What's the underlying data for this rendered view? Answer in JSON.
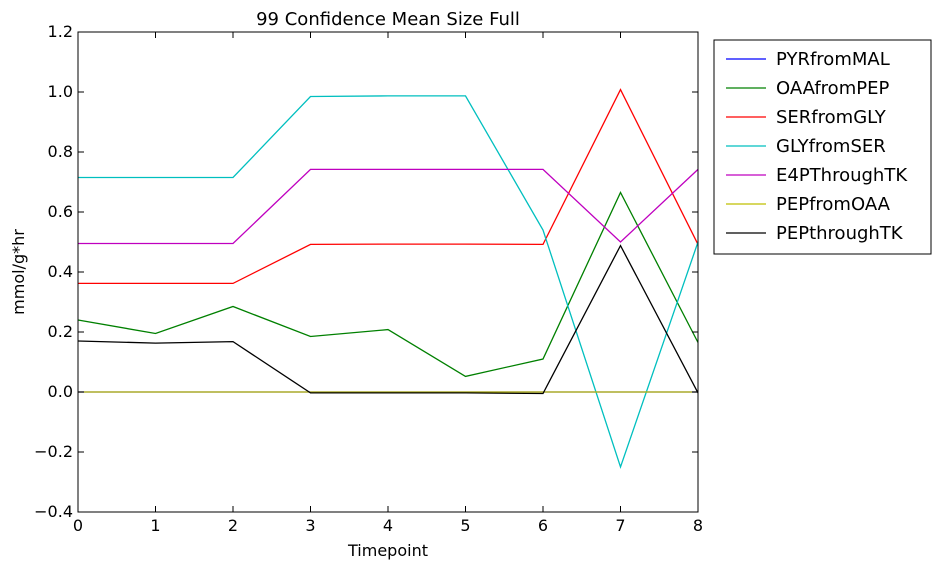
{
  "chart_data": {
    "type": "line",
    "title": "99 Confidence Mean Size Full",
    "xlabel": "Timepoint",
    "ylabel": "mmol/g*hr",
    "xlim": [
      0,
      8
    ],
    "ylim": [
      -0.4,
      1.2
    ],
    "x_ticks": [
      "0",
      "1",
      "2",
      "3",
      "4",
      "5",
      "6",
      "7",
      "8"
    ],
    "y_ticks": [
      "−0.4",
      "−0.2",
      "0.0",
      "0.2",
      "0.4",
      "0.6",
      "0.8",
      "1.0",
      "1.2"
    ],
    "grid": false,
    "legend_position": "outside-right",
    "x": [
      0,
      1,
      2,
      3,
      4,
      5,
      6,
      7,
      8
    ],
    "series": [
      {
        "name": "PYRfromMAL",
        "color": "#0000ff",
        "values": [
          0,
          0,
          0,
          0,
          0,
          0,
          0,
          0,
          0
        ]
      },
      {
        "name": "OAAfromPEP",
        "color": "#008000",
        "values": [
          0.24,
          0.195,
          0.285,
          0.185,
          0.208,
          0.052,
          0.11,
          0.665,
          0.165
        ]
      },
      {
        "name": "SERfromGLY",
        "color": "#ff0000",
        "values": [
          0.362,
          0.362,
          0.362,
          0.492,
          0.493,
          0.493,
          0.492,
          1.008,
          0.492
        ]
      },
      {
        "name": "GLYfromSER",
        "color": "#00bfbf",
        "values": [
          0.715,
          0.715,
          0.715,
          0.985,
          0.987,
          0.987,
          0.54,
          -0.25,
          0.5
        ]
      },
      {
        "name": "E4PThroughTK",
        "color": "#bf00bf",
        "values": [
          0.495,
          0.495,
          0.495,
          0.742,
          0.742,
          0.742,
          0.742,
          0.5,
          0.742
        ]
      },
      {
        "name": "PEPfromOAA",
        "color": "#bfbf00",
        "values": [
          0,
          0,
          0,
          0,
          0,
          0,
          0,
          0,
          0
        ]
      },
      {
        "name": "PEPthroughTK",
        "color": "#000000",
        "values": [
          0.17,
          0.163,
          0.168,
          -0.003,
          -0.003,
          -0.003,
          -0.005,
          0.488,
          -0.003
        ]
      }
    ]
  }
}
